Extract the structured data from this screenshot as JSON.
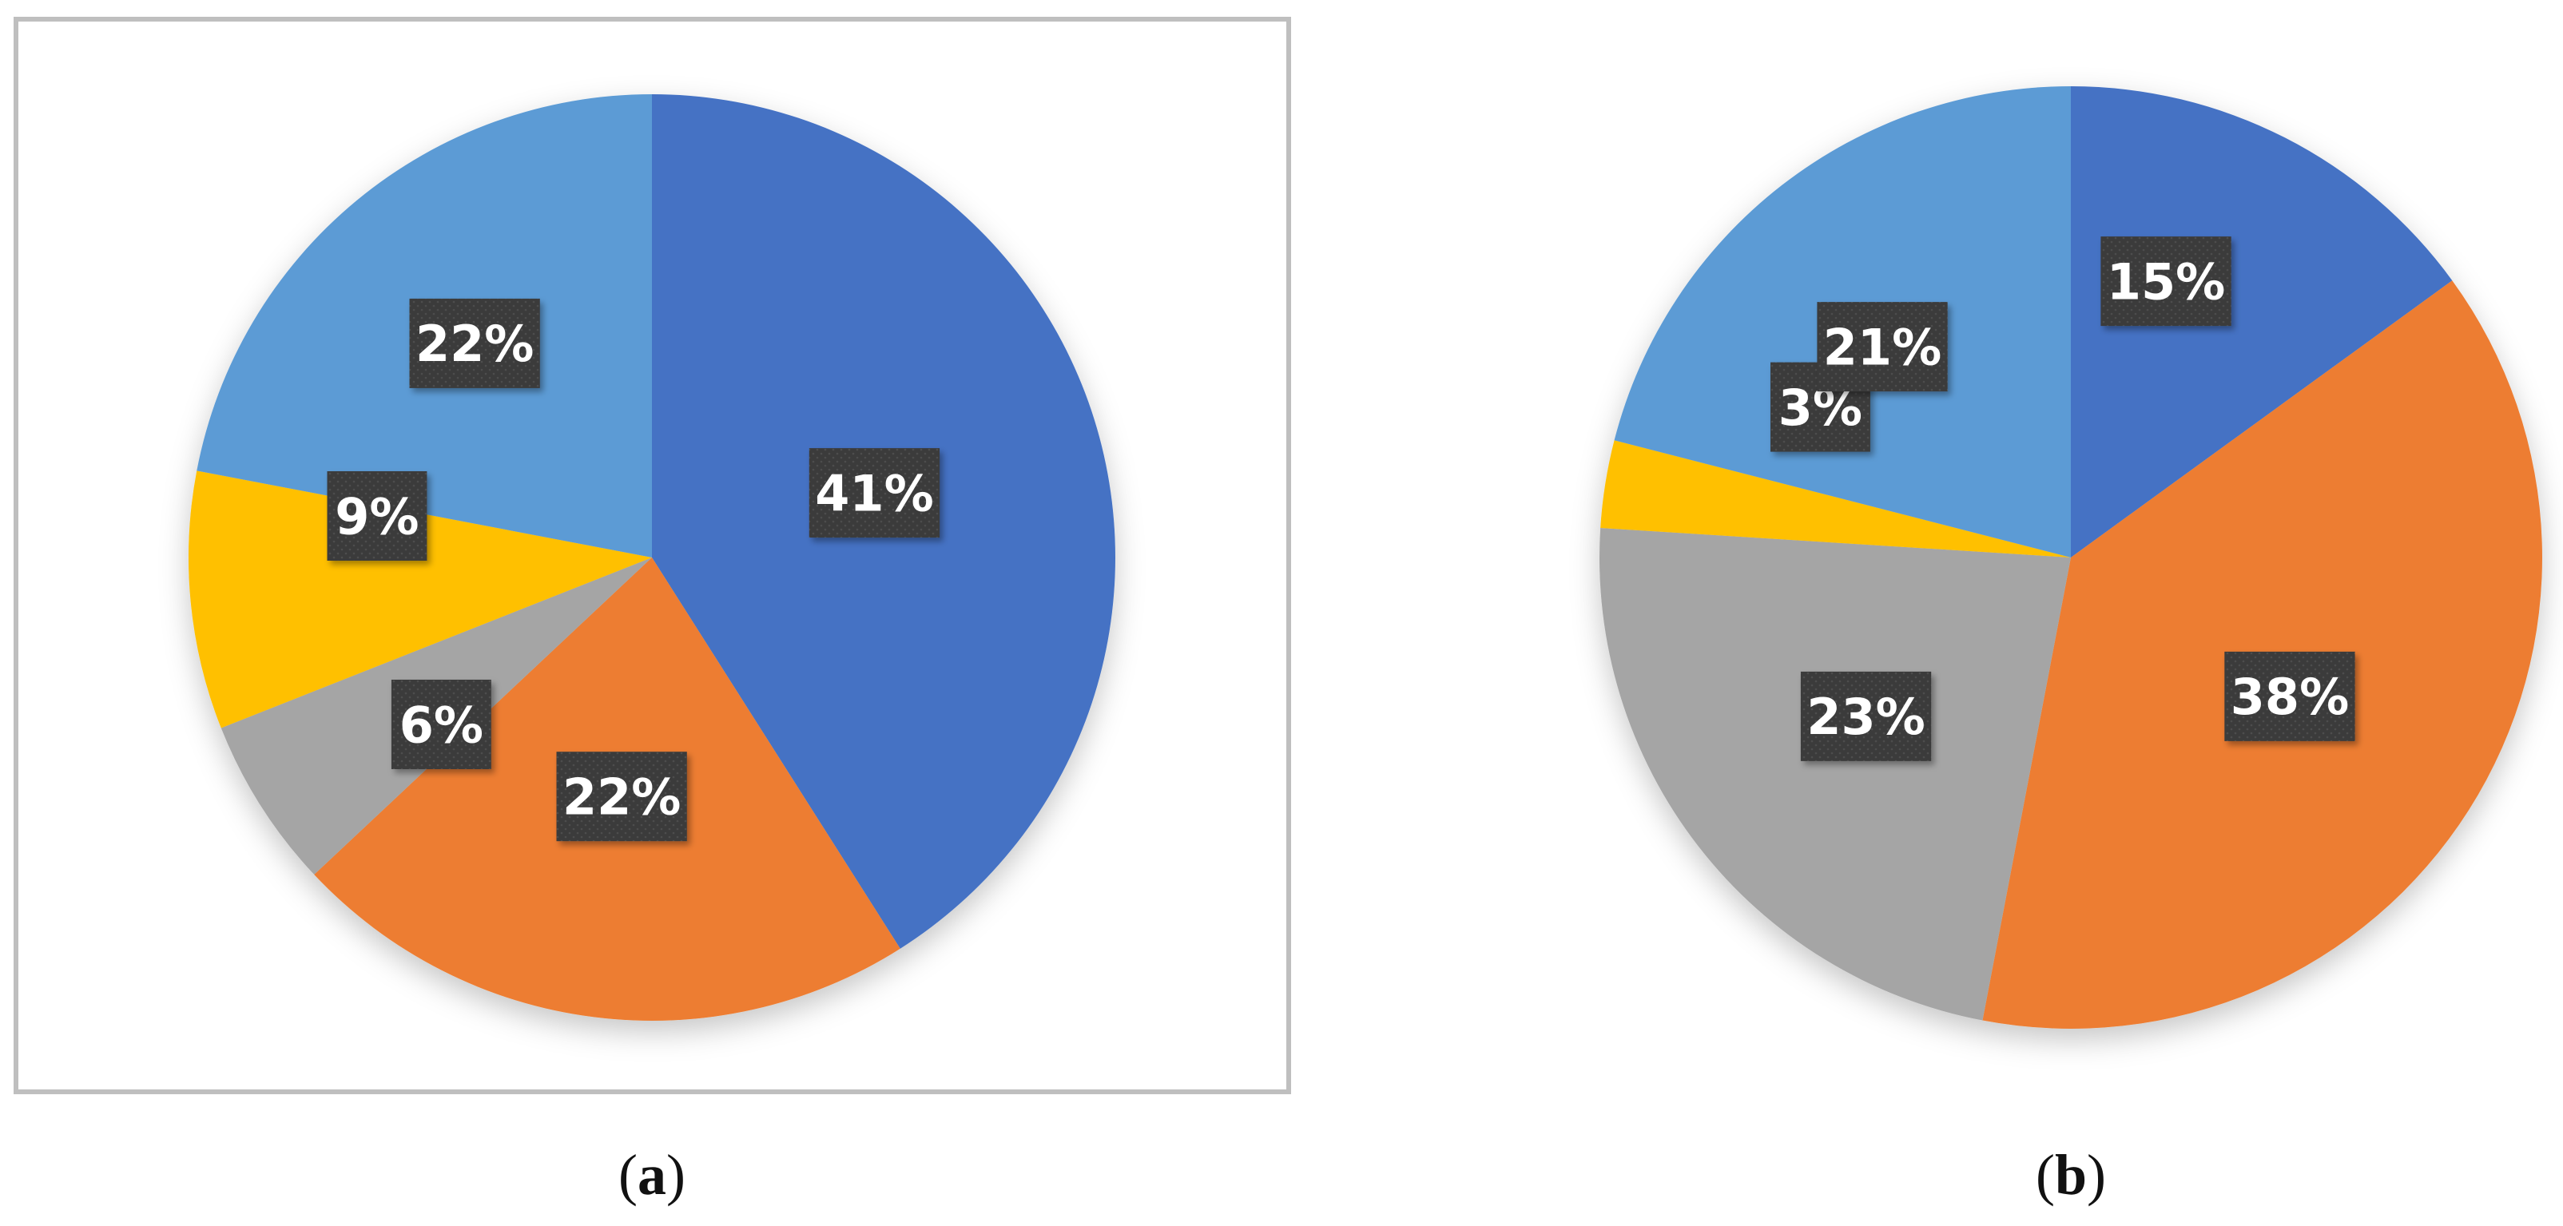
{
  "chart_data": [
    {
      "type": "pie",
      "panel_label": "(a)",
      "panel_label_open": "(",
      "panel_label_letter": "a",
      "panel_label_close": ")",
      "start_angle_deg": 0,
      "direction": "clockwise",
      "slices": [
        {
          "value": 41,
          "label": "41%",
          "color": "#4472C4"
        },
        {
          "value": 22,
          "label": "22%",
          "color": "#ED7D31"
        },
        {
          "value": 6,
          "label": "6%",
          "color": "#A5A5A5"
        },
        {
          "value": 9,
          "label": "9%",
          "color": "#FFC000"
        },
        {
          "value": 22,
          "label": "22%",
          "color": "#5B9BD5"
        }
      ],
      "framed": true
    },
    {
      "type": "pie",
      "panel_label": "(b)",
      "panel_label_open": "(",
      "panel_label_letter": "b",
      "panel_label_close": ")",
      "start_angle_deg": 0,
      "direction": "clockwise",
      "slices": [
        {
          "value": 15,
          "label": "15%",
          "color": "#4472C4"
        },
        {
          "value": 38,
          "label": "38%",
          "color": "#ED7D31"
        },
        {
          "value": 23,
          "label": "23%",
          "color": "#A5A5A5"
        },
        {
          "value": 3,
          "label": "3%",
          "color": "#FFC000"
        },
        {
          "value": 21,
          "label": "21%",
          "color": "#5B9BD5"
        }
      ],
      "framed": false
    }
  ],
  "colors": {
    "label_box": "#3B3B3B",
    "label_text": "#FFFFFF",
    "frame": "#BFBFBF"
  }
}
